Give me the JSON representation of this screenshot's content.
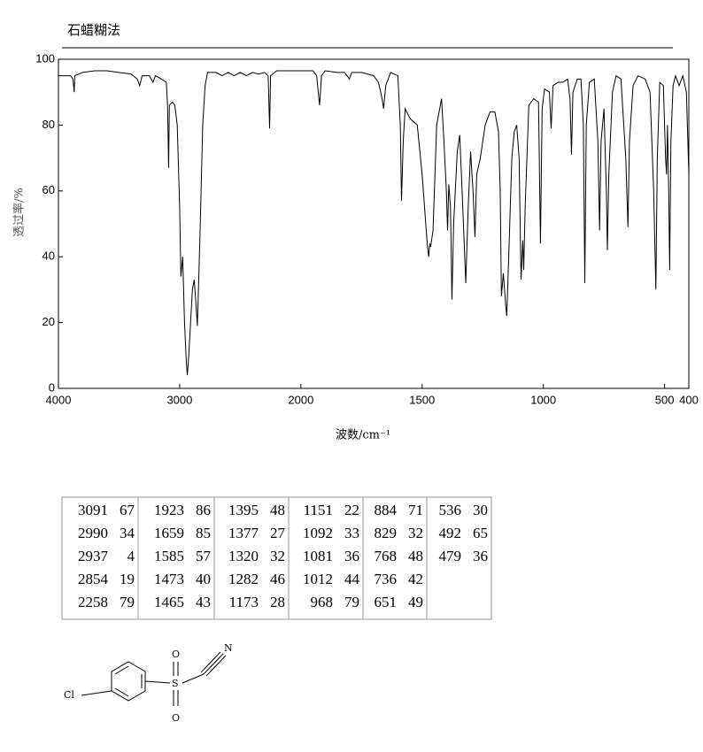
{
  "title": "石蜡糊法",
  "chart_data": {
    "type": "line",
    "xlabel": "波数/cm⁻¹",
    "ylabel": "透过率/%",
    "xlim": [
      4000,
      400
    ],
    "ylim": [
      0,
      100
    ],
    "xticks": [
      4000,
      3000,
      2000,
      1500,
      1000,
      500,
      400
    ],
    "yticks": [
      0,
      20,
      40,
      60,
      80,
      100
    ],
    "x_scale_break": {
      "value": 2000,
      "factor": 2
    },
    "series": [
      {
        "color": "#000000",
        "x": [
          4000,
          3950,
          3900,
          3880,
          3870,
          3865,
          3800,
          3700,
          3600,
          3500,
          3400,
          3350,
          3330,
          3310,
          3250,
          3220,
          3200,
          3150,
          3110,
          3100,
          3091,
          3085,
          3060,
          3040,
          3020,
          3000,
          2990,
          2975,
          2960,
          2945,
          2937,
          2925,
          2910,
          2895,
          2880,
          2870,
          2854,
          2845,
          2830,
          2810,
          2790,
          2770,
          2700,
          2650,
          2600,
          2550,
          2500,
          2450,
          2400,
          2350,
          2300,
          2270,
          2258,
          2250,
          2200,
          2100,
          2000,
          1950,
          1935,
          1923,
          1915,
          1900,
          1850,
          1820,
          1800,
          1790,
          1750,
          1700,
          1680,
          1665,
          1659,
          1650,
          1630,
          1600,
          1590,
          1585,
          1578,
          1570,
          1550,
          1520,
          1500,
          1480,
          1473,
          1468,
          1465,
          1455,
          1440,
          1420,
          1410,
          1400,
          1395,
          1390,
          1383,
          1377,
          1370,
          1355,
          1345,
          1335,
          1320,
          1310,
          1300,
          1290,
          1282,
          1275,
          1260,
          1240,
          1220,
          1200,
          1185,
          1178,
          1173,
          1165,
          1155,
          1151,
          1145,
          1130,
          1120,
          1110,
          1100,
          1092,
          1085,
          1081,
          1075,
          1060,
          1040,
          1020,
          1012,
          1005,
          995,
          975,
          968,
          960,
          940,
          920,
          900,
          890,
          884,
          878,
          860,
          845,
          835,
          829,
          823,
          810,
          790,
          775,
          768,
          762,
          750,
          740,
          736,
          730,
          715,
          700,
          680,
          660,
          651,
          645,
          630,
          610,
          580,
          560,
          545,
          536,
          530,
          520,
          505,
          496,
          492,
          488,
          483,
          479,
          474,
          465,
          455,
          440,
          425,
          410,
          402,
          400
        ],
        "values": [
          95,
          95,
          95,
          94,
          90,
          95,
          96,
          96.5,
          96.5,
          96,
          95.5,
          94,
          92,
          95,
          95,
          93,
          95,
          94,
          93,
          86,
          67,
          86,
          87,
          86,
          80,
          55,
          34,
          40,
          20,
          8,
          4,
          10,
          20,
          30,
          33,
          28,
          19,
          30,
          50,
          80,
          92,
          96,
          96,
          95,
          96,
          95,
          96,
          95,
          96,
          95.5,
          96,
          95,
          79,
          95,
          96.5,
          96.5,
          96.5,
          96.5,
          95,
          86,
          95,
          96.5,
          96,
          96,
          94,
          96,
          96,
          95,
          93,
          88,
          85,
          92,
          96,
          95,
          80,
          57,
          75,
          85,
          82,
          80,
          65,
          45,
          40,
          44,
          43,
          48,
          80,
          88,
          75,
          60,
          48,
          62,
          55,
          27,
          50,
          72,
          77,
          60,
          32,
          55,
          72,
          60,
          46,
          65,
          70,
          80,
          84,
          84,
          78,
          60,
          28,
          35,
          25,
          22,
          35,
          70,
          78,
          80,
          70,
          33,
          45,
          36,
          55,
          86,
          88,
          87,
          44,
          85,
          91,
          90,
          79,
          92,
          93,
          93,
          94,
          88,
          71,
          90,
          94,
          94,
          80,
          32,
          80,
          93,
          94,
          75,
          48,
          75,
          85,
          60,
          42,
          65,
          90,
          95,
          94,
          70,
          49,
          75,
          92,
          95,
          94,
          90,
          60,
          30,
          70,
          93,
          92,
          70,
          65,
          80,
          60,
          36,
          75,
          92,
          95,
          92,
          95,
          90,
          70,
          65
        ]
      }
    ]
  },
  "table": {
    "columns": [
      [
        [
          3091,
          67
        ],
        [
          2990,
          34
        ],
        [
          2937,
          4
        ],
        [
          2854,
          19
        ],
        [
          2258,
          79
        ]
      ],
      [
        [
          1923,
          86
        ],
        [
          1659,
          85
        ],
        [
          1585,
          57
        ],
        [
          1473,
          40
        ],
        [
          1465,
          43
        ]
      ],
      [
        [
          1395,
          48
        ],
        [
          1377,
          27
        ],
        [
          1320,
          32
        ],
        [
          1282,
          46
        ],
        [
          1173,
          28
        ]
      ],
      [
        [
          1151,
          22
        ],
        [
          1092,
          33
        ],
        [
          1081,
          36
        ],
        [
          1012,
          44
        ],
        [
          968,
          79
        ]
      ],
      [
        [
          884,
          71
        ],
        [
          829,
          32
        ],
        [
          768,
          48
        ],
        [
          736,
          42
        ],
        [
          651,
          49
        ]
      ],
      [
        [
          536,
          30
        ],
        [
          492,
          65
        ],
        [
          479,
          36
        ]
      ]
    ]
  },
  "structure": {
    "atoms": [
      "Cl",
      "S",
      "O",
      "O",
      "N"
    ]
  }
}
